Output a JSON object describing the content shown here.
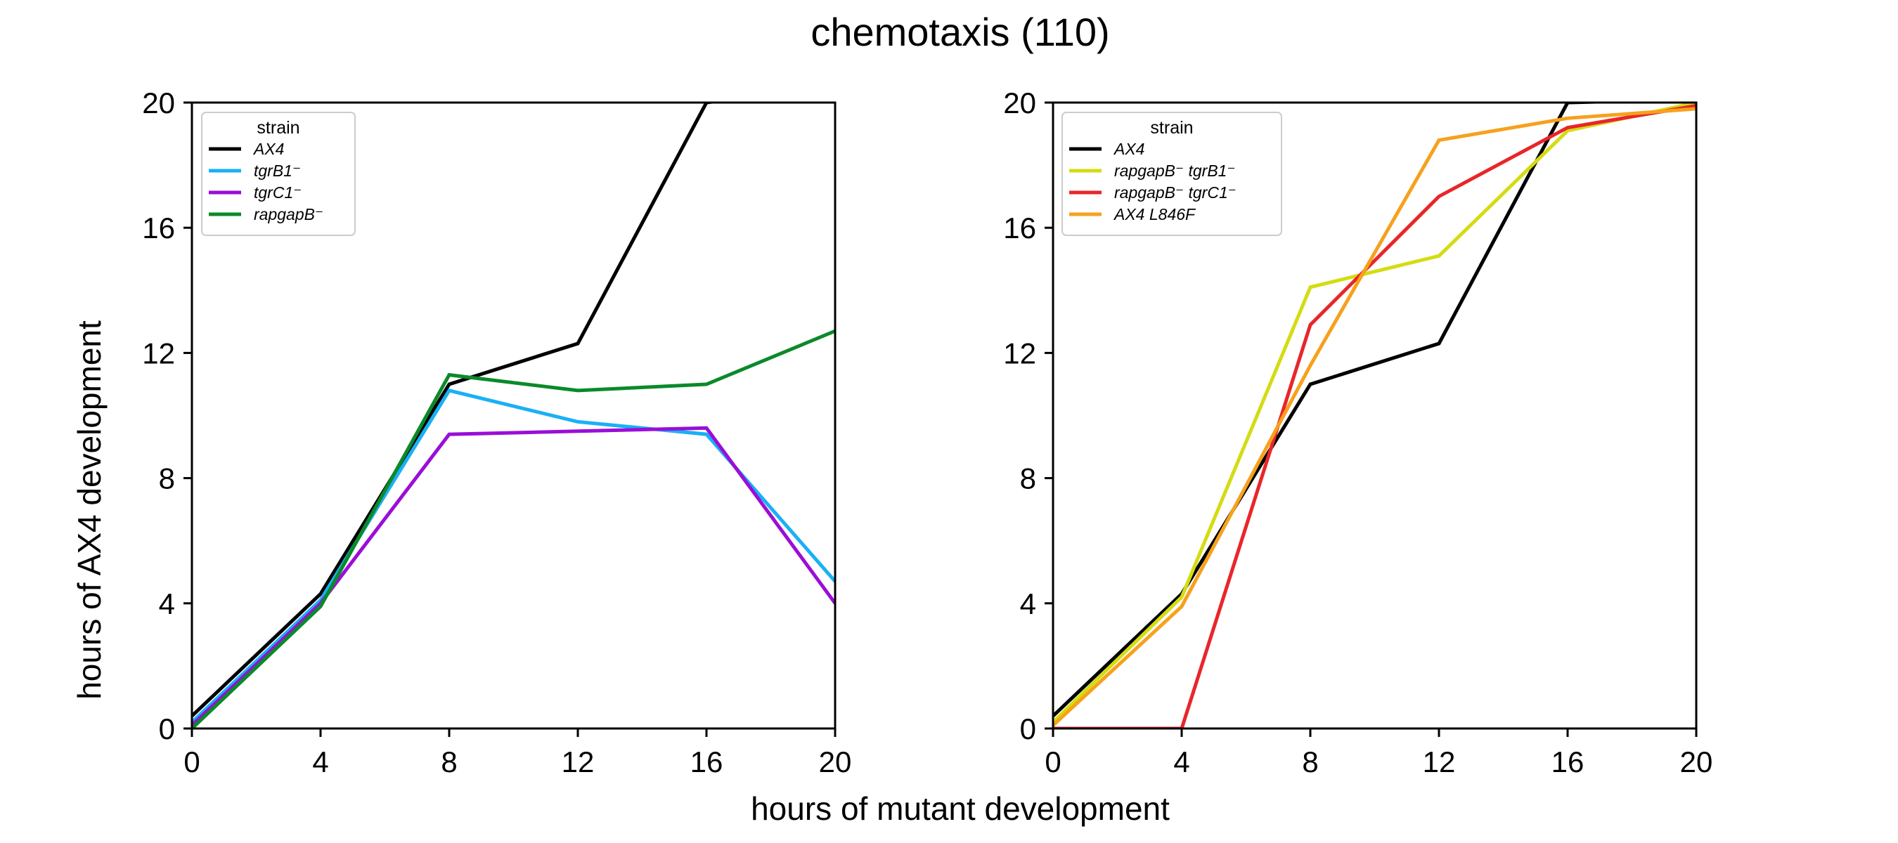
{
  "figure": {
    "title": "chemotaxis (110)",
    "xlabel": "hours of mutant development",
    "ylabel": "hours of AX4 development"
  },
  "chart_data": [
    {
      "type": "line",
      "title": "",
      "xlim": [
        0,
        20
      ],
      "ylim": [
        0,
        20
      ],
      "xticks": [
        0,
        4,
        8,
        12,
        16,
        20
      ],
      "yticks": [
        0,
        4,
        8,
        12,
        16,
        20
      ],
      "legend": {
        "title": "strain",
        "placement": "top-left"
      },
      "x": [
        0,
        4,
        8,
        12,
        16,
        20
      ],
      "series": [
        {
          "name": "AX4",
          "color": "#000000",
          "values": [
            0.4,
            4.3,
            11.0,
            12.3,
            20.0,
            20.5
          ]
        },
        {
          "name": "tgrB1⁻",
          "color": "#1ab0f5",
          "values": [
            0.2,
            4.1,
            10.8,
            9.8,
            9.4,
            4.7
          ]
        },
        {
          "name": "tgrC1⁻",
          "color": "#9a0ed8",
          "values": [
            0.1,
            4.0,
            9.4,
            9.5,
            9.6,
            4.0
          ]
        },
        {
          "name": "rapgapB⁻",
          "color": "#0a8a2a",
          "values": [
            0.0,
            3.9,
            11.3,
            10.8,
            11.0,
            12.7
          ]
        }
      ]
    },
    {
      "type": "line",
      "title": "",
      "xlim": [
        0,
        20
      ],
      "ylim": [
        0,
        20
      ],
      "xticks": [
        0,
        4,
        8,
        12,
        16,
        20
      ],
      "yticks": [
        0,
        4,
        8,
        12,
        16,
        20
      ],
      "legend": {
        "title": "strain",
        "placement": "top-left"
      },
      "x": [
        0,
        4,
        8,
        12,
        16,
        20
      ],
      "series": [
        {
          "name": "AX4",
          "color": "#000000",
          "values": [
            0.4,
            4.3,
            11.0,
            12.3,
            20.0,
            20.1
          ]
        },
        {
          "name": "rapgapB⁻ tgrB1⁻",
          "color": "#d4dc12",
          "values": [
            0.2,
            4.2,
            14.1,
            15.1,
            19.1,
            20.0
          ]
        },
        {
          "name": "rapgapB⁻ tgrC1⁻",
          "color": "#e8262a",
          "values": [
            0.0,
            0.0,
            12.9,
            17.0,
            19.2,
            19.9
          ]
        },
        {
          "name": "AX4 L846F",
          "color": "#f6a11c",
          "values": [
            0.1,
            3.9,
            11.6,
            18.8,
            19.5,
            19.8
          ]
        }
      ]
    }
  ]
}
